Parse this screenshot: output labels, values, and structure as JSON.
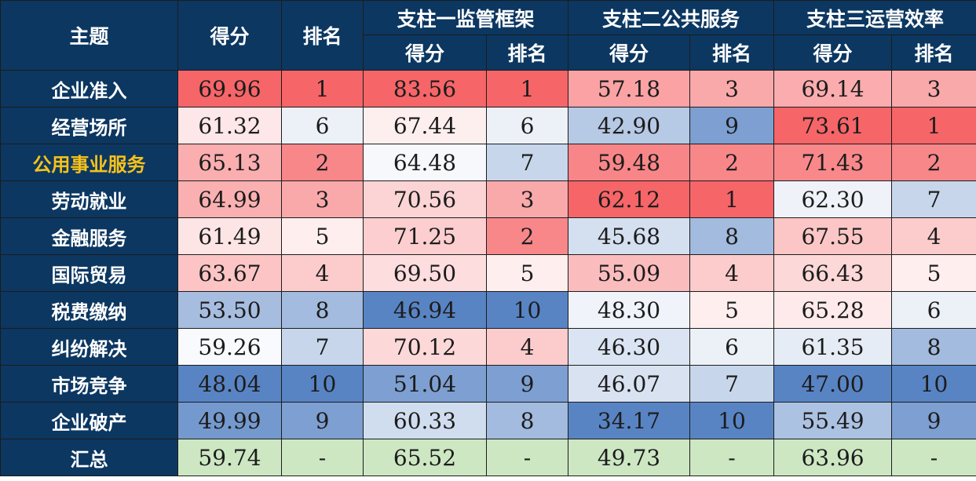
{
  "header": {
    "topic": "主题",
    "score": "得分",
    "rank": "排名",
    "pillar1": "支柱一监管框架",
    "pillar2": "支柱二公共服务",
    "pillar3": "支柱三运营效率",
    "p1_score": "得分",
    "p1_rank": "排名",
    "p2_score": "得分",
    "p2_rank": "排名",
    "p3_score": "得分",
    "p3_rank": "排名"
  },
  "highlight_color": "#f7c21a",
  "summary_color": "#cde7c3",
  "rows": [
    {
      "topic": "企业准入",
      "highlight": false,
      "cells": [
        "69.96",
        "1",
        "83.56",
        "1",
        "57.18",
        "3",
        "69.14",
        "3"
      ]
    },
    {
      "topic": "经营场所",
      "highlight": false,
      "cells": [
        "61.32",
        "6",
        "67.44",
        "6",
        "42.90",
        "9",
        "73.61",
        "1"
      ]
    },
    {
      "topic": "公用事业服务",
      "highlight": true,
      "cells": [
        "65.13",
        "2",
        "64.48",
        "7",
        "59.48",
        "2",
        "71.43",
        "2"
      ]
    },
    {
      "topic": "劳动就业",
      "highlight": false,
      "cells": [
        "64.99",
        "3",
        "70.56",
        "3",
        "62.12",
        "1",
        "62.30",
        "7"
      ]
    },
    {
      "topic": "金融服务",
      "highlight": false,
      "cells": [
        "61.49",
        "5",
        "71.25",
        "2",
        "45.68",
        "8",
        "67.55",
        "4"
      ]
    },
    {
      "topic": "国际贸易",
      "highlight": false,
      "cells": [
        "63.67",
        "4",
        "69.50",
        "5",
        "55.09",
        "4",
        "66.43",
        "5"
      ]
    },
    {
      "topic": "税费缴纳",
      "highlight": false,
      "cells": [
        "53.50",
        "8",
        "46.94",
        "10",
        "48.30",
        "5",
        "65.28",
        "6"
      ]
    },
    {
      "topic": "纠纷解决",
      "highlight": false,
      "cells": [
        "59.26",
        "7",
        "70.12",
        "4",
        "46.30",
        "6",
        "61.35",
        "8"
      ]
    },
    {
      "topic": "市场竞争",
      "highlight": false,
      "cells": [
        "48.04",
        "10",
        "51.04",
        "9",
        "46.07",
        "7",
        "47.00",
        "10"
      ]
    },
    {
      "topic": "企业破产",
      "highlight": false,
      "cells": [
        "49.99",
        "9",
        "60.33",
        "8",
        "34.17",
        "10",
        "55.49",
        "9"
      ]
    }
  ],
  "summary": {
    "topic": "汇总",
    "cells": [
      "59.74",
      "-",
      "65.52",
      "-",
      "49.73",
      "-",
      "63.96",
      "-"
    ]
  }
}
